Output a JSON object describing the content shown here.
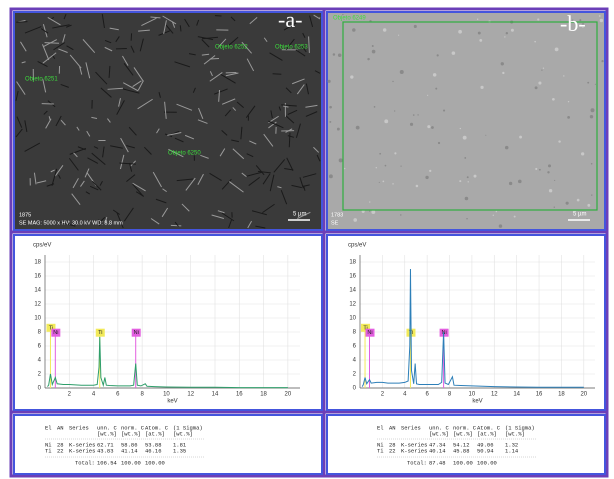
{
  "panels": {
    "a": "-a-",
    "b": "-b-"
  },
  "sem": [
    {
      "labels": [
        "Objeto 6252",
        "Objeto 6253",
        "Objeto 6251",
        "Objeto 6250"
      ],
      "id": "1875",
      "info": "SE MAG: 5000 x HV: 30.0 kV WD: 8.8 mm",
      "scale": "5 µm"
    },
    {
      "labels": [
        "Objeto 6249"
      ],
      "id": "1783",
      "info": "SE",
      "scale": "5 µm"
    }
  ],
  "chart_data": [
    {
      "type": "line",
      "y_label": "cps/eV",
      "x_label": "keV",
      "color": "#2e9e6a",
      "x": [
        0.2,
        0.3,
        0.45,
        0.6,
        0.85,
        1.0,
        1.5,
        2,
        2.5,
        3,
        3.5,
        4,
        4.3,
        4.45,
        4.51,
        4.6,
        4.8,
        4.93,
        5.05,
        5.3,
        6,
        6.5,
        7,
        7.3,
        7.47,
        7.6,
        7.9,
        8.26,
        8.4,
        9,
        10,
        12,
        14,
        16,
        18,
        20
      ],
      "values": [
        0.2,
        0.4,
        2,
        0.5,
        1.5,
        0.6,
        0.5,
        0.5,
        0.45,
        0.4,
        0.4,
        0.4,
        0.5,
        3,
        7.3,
        1.5,
        0.4,
        1.5,
        0.4,
        0.35,
        0.3,
        0.3,
        0.3,
        0.4,
        3.5,
        0.4,
        0.3,
        0.6,
        0.25,
        0.2,
        0.15,
        0.1,
        0.1,
        0.05,
        0.05,
        0.05
      ],
      "xlim": [
        0,
        21
      ],
      "ylim": [
        0,
        19
      ],
      "xticks": [
        2,
        4,
        6,
        8,
        10,
        12,
        14,
        16,
        18,
        20
      ],
      "yticks": [
        0,
        2,
        4,
        6,
        8,
        10,
        12,
        14,
        16,
        18
      ],
      "grid": true,
      "annotations": [
        {
          "label": "Ti",
          "x": 0.45,
          "y": 8.6,
          "color": "#f2ea5a"
        },
        {
          "label": "Ni",
          "x": 0.85,
          "y": 7.9,
          "color": "#e35fe0"
        },
        {
          "label": "Ti",
          "x": 4.51,
          "y": 7.9,
          "color": "#f2ea5a"
        },
        {
          "label": "Ni",
          "x": 7.47,
          "y": 7.9,
          "color": "#e35fe0"
        }
      ]
    },
    {
      "type": "line",
      "y_label": "cps/eV",
      "x_label": "keV",
      "color": "#2d7fb8",
      "x": [
        0.2,
        0.3,
        0.45,
        0.6,
        0.85,
        1.0,
        1.5,
        2,
        2.5,
        3,
        3.5,
        4,
        4.3,
        4.45,
        4.51,
        4.6,
        4.8,
        4.93,
        5.05,
        5.3,
        6,
        6.5,
        7,
        7.3,
        7.47,
        7.6,
        7.9,
        8.26,
        8.4,
        9,
        10,
        12,
        14,
        16,
        18,
        20
      ],
      "values": [
        0.2,
        0.5,
        1.5,
        0.6,
        1.2,
        0.7,
        0.8,
        0.8,
        0.7,
        0.7,
        0.7,
        0.8,
        1,
        6,
        17,
        2.5,
        0.6,
        3.5,
        0.6,
        0.5,
        0.5,
        0.5,
        0.5,
        0.8,
        8,
        0.7,
        0.5,
        1.6,
        0.4,
        0.35,
        0.3,
        0.2,
        0.15,
        0.1,
        0.1,
        0.1
      ],
      "xlim": [
        0,
        21
      ],
      "ylim": [
        0,
        19
      ],
      "xticks": [
        2,
        4,
        6,
        8,
        10,
        12,
        14,
        16,
        18,
        20
      ],
      "yticks": [
        0,
        2,
        4,
        6,
        8,
        10,
        12,
        14,
        16,
        18
      ],
      "grid": true,
      "annotations": [
        {
          "label": "Ti",
          "x": 0.45,
          "y": 8.6,
          "color": "#f2ea5a"
        },
        {
          "label": "Ni",
          "x": 0.85,
          "y": 7.9,
          "color": "#e35fe0"
        },
        {
          "label": "Ti",
          "x": 4.51,
          "y": 7.9,
          "color": "#f2ea5a"
        },
        {
          "label": "Ni",
          "x": 7.47,
          "y": 7.9,
          "color": "#e35fe0"
        }
      ]
    }
  ],
  "tables": [
    {
      "header": [
        "El",
        "AN",
        "Series",
        "unn. C",
        "norm. C",
        "Atom. C",
        "(1 Sigma)"
      ],
      "units": [
        "[wt.%]",
        "[wt.%]",
        "[at.%]",
        "[wt.%]"
      ],
      "rows": [
        [
          "Ni",
          "28",
          "K-series",
          "62.71",
          "58.86",
          "53.88",
          "1.81"
        ],
        [
          "Ti",
          "22",
          "K-series",
          "43.83",
          "41.14",
          "46.16",
          "1.35"
        ]
      ],
      "total": [
        "Total:",
        "106.54",
        "100.00",
        "100.00"
      ]
    },
    {
      "header": [
        "El",
        "AN",
        "Series",
        "unn. C",
        "norm. C",
        "Atom. C",
        "(1 Sigma)"
      ],
      "units": [
        "[wt.%]",
        "[wt.%]",
        "[at.%]",
        "[wt.%]"
      ],
      "rows": [
        [
          "Ni",
          "28",
          "K-series",
          "47.34",
          "54.12",
          "49.06",
          "1.32"
        ],
        [
          "Ti",
          "22",
          "K-series",
          "40.14",
          "45.88",
          "50.94",
          "1.14"
        ]
      ],
      "total": [
        "Total:",
        "87.48",
        "100.00",
        "100.00"
      ]
    }
  ]
}
